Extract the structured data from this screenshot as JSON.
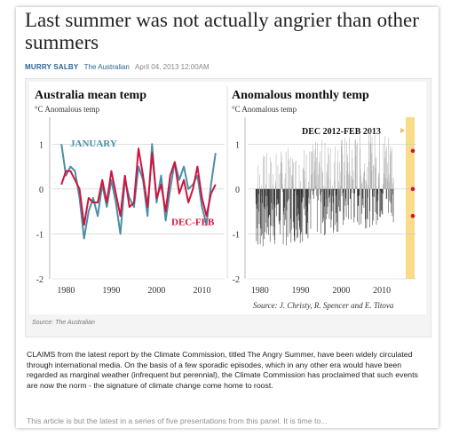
{
  "article": {
    "headline": "Last summer was not actually angrier than other summers",
    "author": "MURRY SALBY",
    "publication": "The Australian",
    "date": "April 04, 2013 12:00AM",
    "source_caption": "Source: The Australian",
    "paragraph1": "CLAIMS from the latest report by the Climate Commission, titled The Angry Summer, have been widely circulated through international media. On the basis of a few sporadic episodes, which in any other era would have been regarded as marginal weather (infrequent but perennial), the Climate Commission has proclaimed that such events are now the norm - the signature of climate change come home to roost.",
    "paragraph2": "This article is but the latest in a series of five presentations from this panel. It is time to..."
  },
  "colors": {
    "january": "#4a8fa8",
    "decfeb": "#d0143c",
    "highlight": "#f8dc88"
  },
  "chart_data": [
    {
      "type": "line",
      "title": "Australia mean temp",
      "ylabel": "°C Anomalous temp",
      "ylim": [
        -2,
        1.5
      ],
      "yticks": [
        1,
        0,
        -1,
        -2
      ],
      "xlim": [
        1977,
        2015
      ],
      "xticks": [
        1980,
        1990,
        2000,
        2010
      ],
      "series": [
        {
          "name": "JANUARY",
          "x": [
            1979,
            1980,
            1981,
            1982,
            1983,
            1984,
            1985,
            1986,
            1987,
            1988,
            1989,
            1990,
            1991,
            1992,
            1993,
            1994,
            1995,
            1996,
            1997,
            1998,
            1999,
            2000,
            2001,
            2002,
            2003,
            2004,
            2005,
            2006,
            2007,
            2008,
            2009,
            2010,
            2011,
            2012,
            2013
          ],
          "values": [
            1.0,
            0.3,
            0.5,
            0.4,
            -0.2,
            -1.1,
            -0.5,
            -0.2,
            -0.6,
            0.1,
            -0.4,
            0.2,
            -0.3,
            -1.0,
            0.2,
            -0.2,
            -0.4,
            0.5,
            0.2,
            -0.6,
            1.0,
            -0.3,
            0.3,
            -0.7,
            0.0,
            0.6,
            0.2,
            0.5,
            0.0,
            0.1,
            0.3,
            -0.4,
            -0.8,
            0.1,
            0.8
          ]
        },
        {
          "name": "DEC-FEB",
          "x": [
            1979,
            1980,
            1981,
            1982,
            1983,
            1984,
            1985,
            1986,
            1987,
            1988,
            1989,
            1990,
            1991,
            1992,
            1993,
            1994,
            1995,
            1996,
            1997,
            1998,
            1999,
            2000,
            2001,
            2002,
            2003,
            2004,
            2005,
            2006,
            2007,
            2008,
            2009,
            2010,
            2011,
            2012,
            2013
          ],
          "values": [
            0.1,
            0.4,
            0.4,
            0.2,
            0.0,
            -0.8,
            -0.2,
            -0.3,
            -0.3,
            0.2,
            -0.3,
            0.4,
            -0.1,
            -0.6,
            0.3,
            -0.4,
            -0.3,
            0.9,
            0.3,
            -0.4,
            0.8,
            -0.2,
            0.1,
            -0.5,
            0.3,
            0.6,
            -0.1,
            0.2,
            -0.3,
            0.0,
            0.5,
            -0.2,
            -0.6,
            -0.1,
            0.1
          ]
        }
      ]
    },
    {
      "type": "bar",
      "title": "Anomalous monthly temp",
      "ylabel": "°C Anomalous temp",
      "ylim": [
        -2,
        1.5
      ],
      "yticks": [
        1,
        0,
        -1,
        -2
      ],
      "xlim": [
        1977,
        2015
      ],
      "xticks": [
        1980,
        1990,
        2000,
        2010
      ],
      "highlight_label": "DEC 2012-FEB 2013",
      "highlight_points": [
        0.85,
        0.0,
        -0.6
      ],
      "annotation": "Source: J. Christy, R. Spencer and E. Titova"
    }
  ]
}
